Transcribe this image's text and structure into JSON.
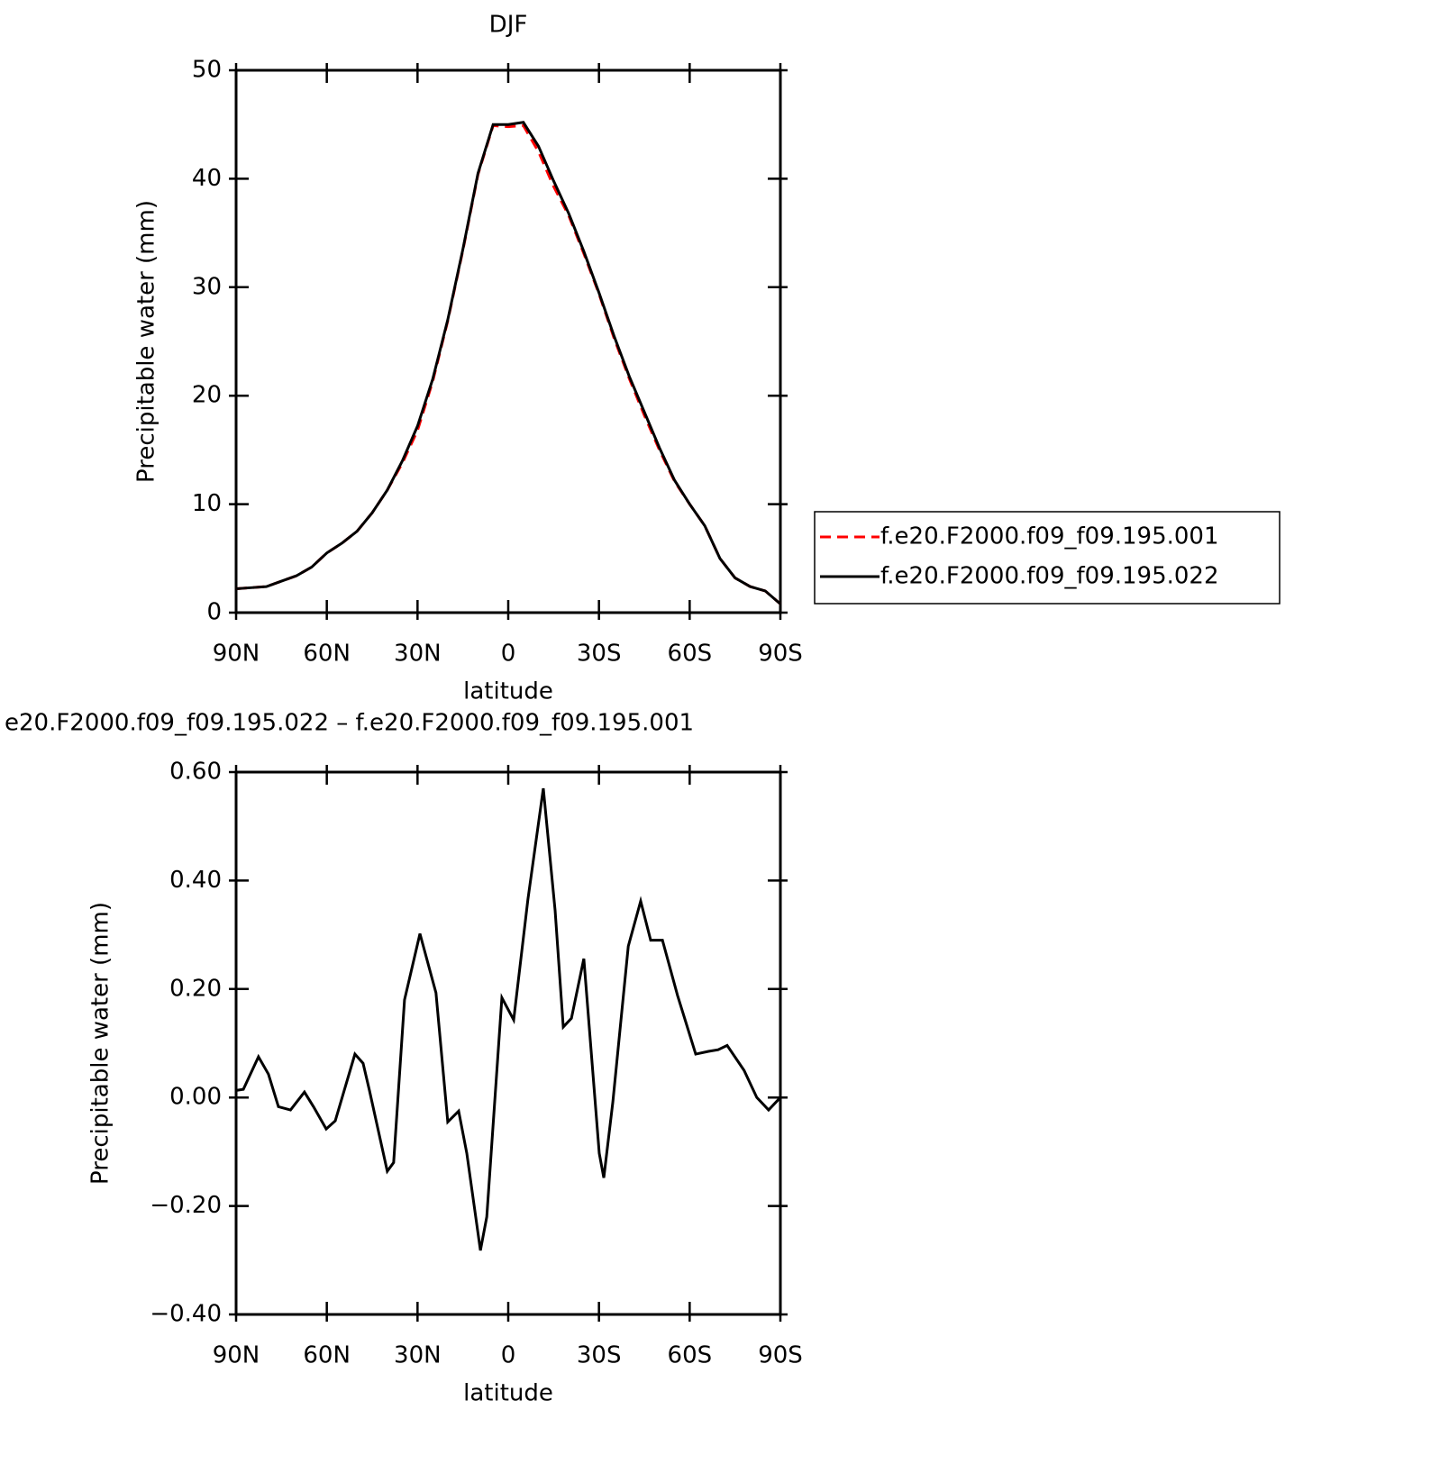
{
  "chart_data": [
    {
      "type": "line",
      "title": "DJF",
      "xlabel": "latitude",
      "ylabel": "Precipitable water (mm)",
      "x": [
        90,
        85,
        80,
        75,
        70,
        65,
        60,
        55,
        50,
        45,
        40,
        35,
        30,
        25,
        20,
        15,
        10,
        5,
        0,
        -5,
        -10,
        -15,
        -20,
        -25,
        -30,
        -35,
        -40,
        -45,
        -50,
        -55,
        -60,
        -65,
        -70,
        -75,
        -80,
        -85,
        -90
      ],
      "series": [
        {
          "name": "f.e20.F2000.f09_f09.195.001",
          "color": "#ff0000",
          "line_style": "dashed",
          "values": [
            2.2,
            2.3,
            2.4,
            2.9,
            3.4,
            4.2,
            5.5,
            6.4,
            7.5,
            9.2,
            11.3,
            13.8,
            16.8,
            21.3,
            26.9,
            33.4,
            40.4,
            44.9,
            44.8,
            44.9,
            42.5,
            39.3,
            36.6,
            33.1,
            29.4,
            25.3,
            21.6,
            18.2,
            15.0,
            12.1,
            10.0,
            8.0,
            5.0,
            3.2,
            2.4,
            2.0,
            0.8
          ]
        },
        {
          "name": "f.e20.F2000.f09_f09.195.022",
          "color": "#000000",
          "line_style": "solid",
          "values": [
            2.2,
            2.3,
            2.4,
            2.9,
            3.4,
            4.2,
            5.5,
            6.4,
            7.5,
            9.2,
            11.3,
            14.0,
            17.2,
            21.5,
            27.0,
            33.5,
            40.5,
            45.0,
            45.0,
            45.2,
            43.0,
            39.8,
            36.8,
            33.3,
            29.5,
            25.5,
            21.8,
            18.5,
            15.2,
            12.2,
            10.0,
            8.0,
            5.0,
            3.2,
            2.4,
            2.0,
            0.8
          ]
        }
      ],
      "xlim": [
        90,
        -90
      ],
      "xticks": [
        {
          "value": 90,
          "label": "90N"
        },
        {
          "value": 60,
          "label": "60N"
        },
        {
          "value": 30,
          "label": "30N"
        },
        0,
        {
          "value": -30,
          "label": "30S"
        },
        {
          "value": -60,
          "label": "60S"
        },
        {
          "value": -90,
          "label": "90S"
        }
      ],
      "ylim": [
        0,
        50
      ],
      "yticks": [
        0,
        10,
        20,
        30,
        40,
        50
      ],
      "legend": "right"
    },
    {
      "type": "line",
      "title": "e20.F2000.f09_f09.195.022 – f.e20.F2000.f09_f09.195.001",
      "xlabel": "latitude",
      "ylabel": "Precipitable water (mm)",
      "x": [
        90,
        87.6,
        82.6,
        79.3,
        76,
        72,
        67.4,
        64.4,
        60.2,
        57.2,
        50.7,
        48,
        45.9,
        40,
        37.9,
        34.3,
        29.2,
        25.7,
        23.9,
        20,
        16.4,
        13.7,
        9.2,
        7.1,
        2.1,
        -1.8,
        -6.5,
        -11.6,
        -15.5,
        -18.2,
        -20.9,
        -25,
        -30.1,
        -31.6,
        -34.6,
        -39.7,
        -43.8,
        -47.1,
        -51,
        -56,
        -62,
        -66.2,
        -69.4,
        -72.4,
        -78,
        -82.2,
        -86.1,
        -90
      ],
      "series": [
        {
          "color": "#000000",
          "line_style": "solid",
          "values": [
            0.013,
            0.015,
            0.075,
            0.043,
            -0.017,
            -0.023,
            0.01,
            -0.017,
            -0.058,
            -0.043,
            0.08,
            0.063,
            0.013,
            -0.136,
            -0.12,
            0.18,
            0.302,
            0.23,
            0.193,
            -0.045,
            -0.025,
            -0.103,
            -0.282,
            -0.22,
            0.184,
            0.143,
            0.365,
            0.57,
            0.345,
            0.13,
            0.146,
            0.256,
            -0.103,
            -0.148,
            -0.008,
            0.279,
            0.362,
            0.29,
            0.29,
            0.188,
            0.08,
            0.085,
            0.088,
            0.096,
            0.05,
            0,
            -0.023,
            0
          ]
        }
      ],
      "xlim": [
        90,
        -90
      ],
      "xticks": [
        {
          "value": 90,
          "label": "90N"
        },
        {
          "value": 60,
          "label": "60N"
        },
        {
          "value": 30,
          "label": "30N"
        },
        0,
        {
          "value": -30,
          "label": "30S"
        },
        {
          "value": -60,
          "label": "60S"
        },
        {
          "value": -90,
          "label": "90S"
        }
      ],
      "ylim": [
        -0.4,
        0.6
      ],
      "yticks": [
        {
          "value": -0.4,
          "label": "−0.40"
        },
        {
          "value": -0.2,
          "label": "−0.20"
        },
        {
          "value": 0,
          "label": "0.00"
        },
        {
          "value": 0.2,
          "label": "0.20"
        },
        {
          "value": 0.4,
          "label": "0.40"
        },
        {
          "value": 0.6,
          "label": "0.60"
        }
      ]
    }
  ]
}
